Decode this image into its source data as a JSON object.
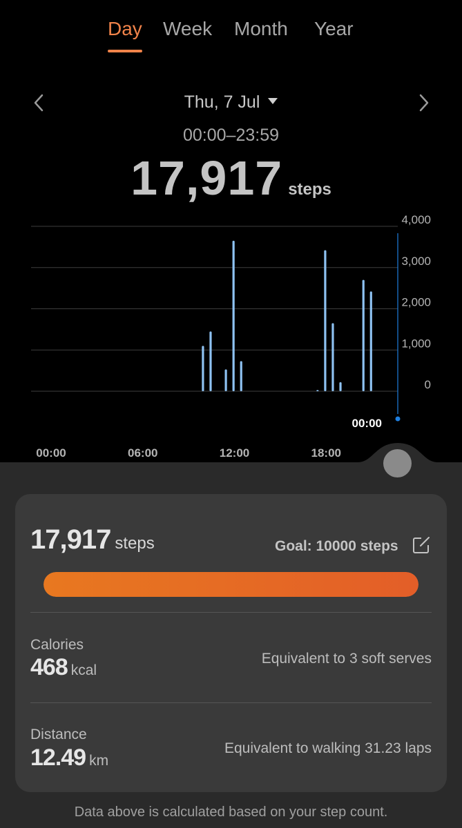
{
  "tabs": [
    {
      "label": "Day",
      "active": true
    },
    {
      "label": "Week",
      "active": false
    },
    {
      "label": "Month",
      "active": false
    },
    {
      "label": "Year",
      "active": false
    }
  ],
  "header": {
    "date": "Thu, 7 Jul",
    "time_range": "00:00–23:59",
    "total_steps": "17,917",
    "steps_unit": "steps"
  },
  "colors": {
    "accent": "#f0834a",
    "bar": "#8ec2f2",
    "marker": "#1e7fe0",
    "progress_start": "#e87820",
    "progress_end": "#e35e28"
  },
  "chart_data": {
    "type": "bar",
    "xlabel": "",
    "ylabel": "",
    "x_ticks": [
      "00:00",
      "06:00",
      "12:00",
      "18:00"
    ],
    "y_ticks": [
      "4,000",
      "3,000",
      "2,000",
      "1,000",
      "0"
    ],
    "ylim": [
      0,
      4000
    ],
    "xlim_hours": [
      0,
      24
    ],
    "grid": true,
    "x_hours": [
      11.25,
      11.75,
      12.75,
      13.25,
      13.75,
      18.75,
      19.25,
      19.75,
      20.25,
      21.75,
      22.25
    ],
    "values": [
      1100,
      1450,
      530,
      3650,
      730,
      30,
      3420,
      1650,
      220,
      2700,
      2420
    ],
    "cursor_label": "00:00"
  },
  "summary": {
    "steps": "17,917",
    "steps_unit": "steps",
    "goal_label": "Goal: 10000 steps",
    "progress": 1.0
  },
  "calories": {
    "label": "Calories",
    "value": "468",
    "unit": "kcal",
    "equivalent": "Equivalent to 3 soft serves"
  },
  "distance": {
    "label": "Distance",
    "value": "12.49",
    "unit": "km",
    "equivalent": "Equivalent to walking 31.23 laps"
  },
  "footer": "Data above is calculated based on your step count.",
  "icons": [
    "chevron-left-icon",
    "chevron-right-icon",
    "caret-down-icon",
    "edit-icon"
  ]
}
